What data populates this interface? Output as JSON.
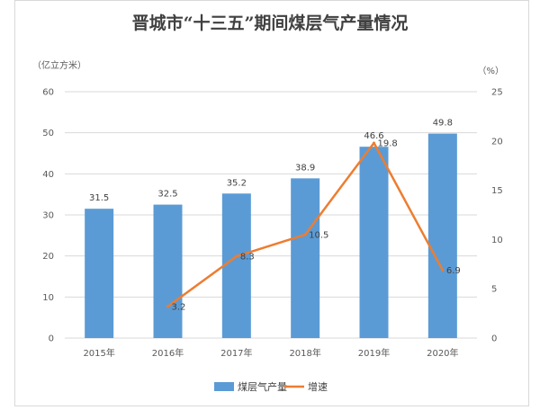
{
  "chart_data": {
    "type": "bar+line",
    "title": "晋城市“十三五”期间煤层气产量情况",
    "left_unit": "（亿立方米）",
    "right_unit": "（%）",
    "categories": [
      "2015年",
      "2016年",
      "2017年",
      "2018年",
      "2019年",
      "2020年"
    ],
    "series": [
      {
        "name": "煤层气产量",
        "type": "bar",
        "axis": "left",
        "color": "#5b9bd5",
        "values": [
          31.5,
          32.5,
          35.2,
          38.9,
          46.6,
          49.8
        ],
        "labels": [
          "31.5",
          "32.5",
          "35.2",
          "38.9",
          "46.6",
          "49.8"
        ]
      },
      {
        "name": "增速",
        "type": "line",
        "axis": "right",
        "color": "#ed7d31",
        "values": [
          null,
          3.2,
          8.3,
          10.5,
          19.8,
          6.9
        ],
        "labels": [
          "",
          "3.2",
          "8.3",
          "10.5",
          "19.8",
          "6.9"
        ]
      }
    ],
    "left_axis": {
      "min": 0,
      "max": 60,
      "step": 10,
      "ticks": [
        "0",
        "10",
        "20",
        "30",
        "40",
        "50",
        "60"
      ]
    },
    "right_axis": {
      "min": 0,
      "max": 25,
      "step": 5,
      "ticks": [
        "0",
        "5",
        "10",
        "15",
        "20",
        "25"
      ]
    },
    "grid": true,
    "legend_position": "bottom"
  }
}
